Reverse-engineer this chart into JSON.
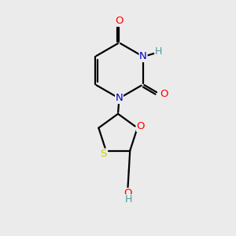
{
  "background_color": "#ebebeb",
  "bond_color": "#000000",
  "atom_colors": {
    "O": "#ff0000",
    "N": "#0000cc",
    "S": "#cccc00",
    "H_N": "#4d9999",
    "H_O": "#4d9999"
  },
  "figsize": [
    3.0,
    3.0
  ],
  "dpi": 100,
  "lw": 1.6,
  "fontsize": 9.5
}
